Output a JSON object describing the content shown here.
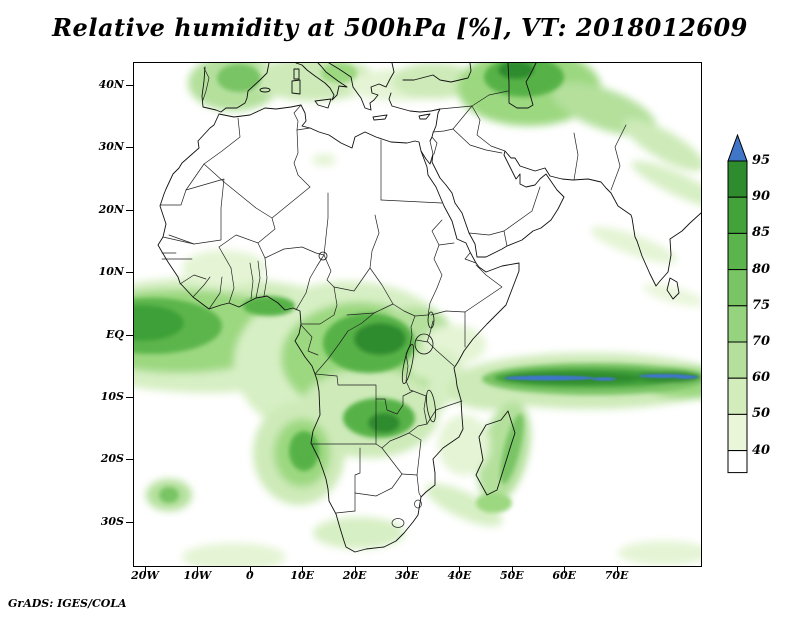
{
  "title": "Relative humidity at 500hPa [%], VT: 2018012609",
  "attribution": "GrADS: IGES/COLA",
  "chart_data": {
    "type": "heatmap",
    "variable": "Relative humidity",
    "level": "500hPa",
    "units": "%",
    "valid_time": "2018012609",
    "title": "Relative humidity at 500hPa [%], VT: 2018012609",
    "x_axis": {
      "ticks": [
        "20W",
        "10W",
        "0",
        "10E",
        "20E",
        "30E",
        "40E",
        "50E",
        "60E",
        "70E"
      ]
    },
    "y_axis": {
      "ticks": [
        "40N",
        "30N",
        "20N",
        "10N",
        "EQ",
        "10S",
        "20S",
        "30S"
      ]
    },
    "colorbar": {
      "labels_top_to_bottom": [
        "95",
        "90",
        "85",
        "80",
        "75",
        "70",
        "60",
        "50",
        "40"
      ],
      "levels": [
        40,
        50,
        60,
        70,
        75,
        80,
        85,
        90,
        95
      ],
      "segment_colors_top_to_bottom": [
        "#2e8b2e",
        "#43a33a",
        "#5cb54c",
        "#79c465",
        "#95d37f",
        "#b4e09c",
        "#d2ecbc",
        "#e9f6da",
        "#ffffff"
      ],
      "above_max_color": "#3f76c8"
    },
    "features": [
      "Very humid band (85-95%, local >95% blue streaks) near 7S stretching from East Africa across the Indian Ocean to the map edge",
      "Broad humid region (70-90%) over the Congo Basin, Angola and Zambia",
      "Humid band near the Equator over the eastern Atlantic and Gulf of Guinea coast (70-90%)",
      "Moist patches over the western Mediterranean, Turkey and the Middle East (60-90%)",
      "Moderate humidity (50-80%) over Namibia and the southwest coast of Africa",
      "Enhanced humidity along eastern Madagascar and southwest of Madagascar",
      "Dry air (<40%, white) over the Sahara, Arabian Peninsula, Horn of Africa and subtropical oceans"
    ]
  }
}
